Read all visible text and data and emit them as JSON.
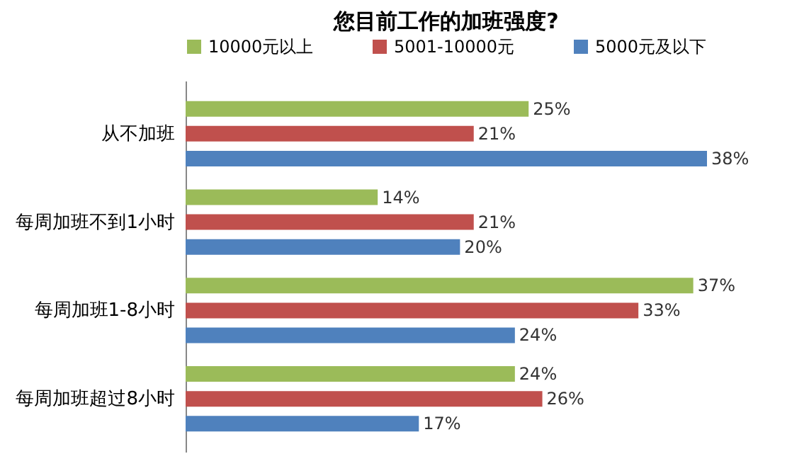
{
  "chart_data": {
    "type": "bar",
    "orientation": "horizontal",
    "title": "您目前工作的加班强度?",
    "categories": [
      "从不加班",
      "每周加班不到1小时",
      "每周加班1-8小时",
      "每周加班超过8小时"
    ],
    "series": [
      {
        "name": "10000元以上",
        "color": "#9bbb59",
        "values": [
          25,
          14,
          37,
          24
        ],
        "value_labels": [
          "25%",
          "14%",
          "37%",
          "24%"
        ]
      },
      {
        "name": "5001-10000元",
        "color": "#c0504d",
        "values": [
          21,
          21,
          33,
          26
        ],
        "value_labels": [
          "21%",
          "21%",
          "33%",
          "26%"
        ]
      },
      {
        "name": "5000元及以下",
        "color": "#4f81bd",
        "values": [
          38,
          20,
          24,
          17
        ],
        "value_labels": [
          "38%",
          "20%",
          "24%",
          "17%"
        ]
      }
    ],
    "legend": "top",
    "grid": false,
    "tick_labels": "y"
  }
}
